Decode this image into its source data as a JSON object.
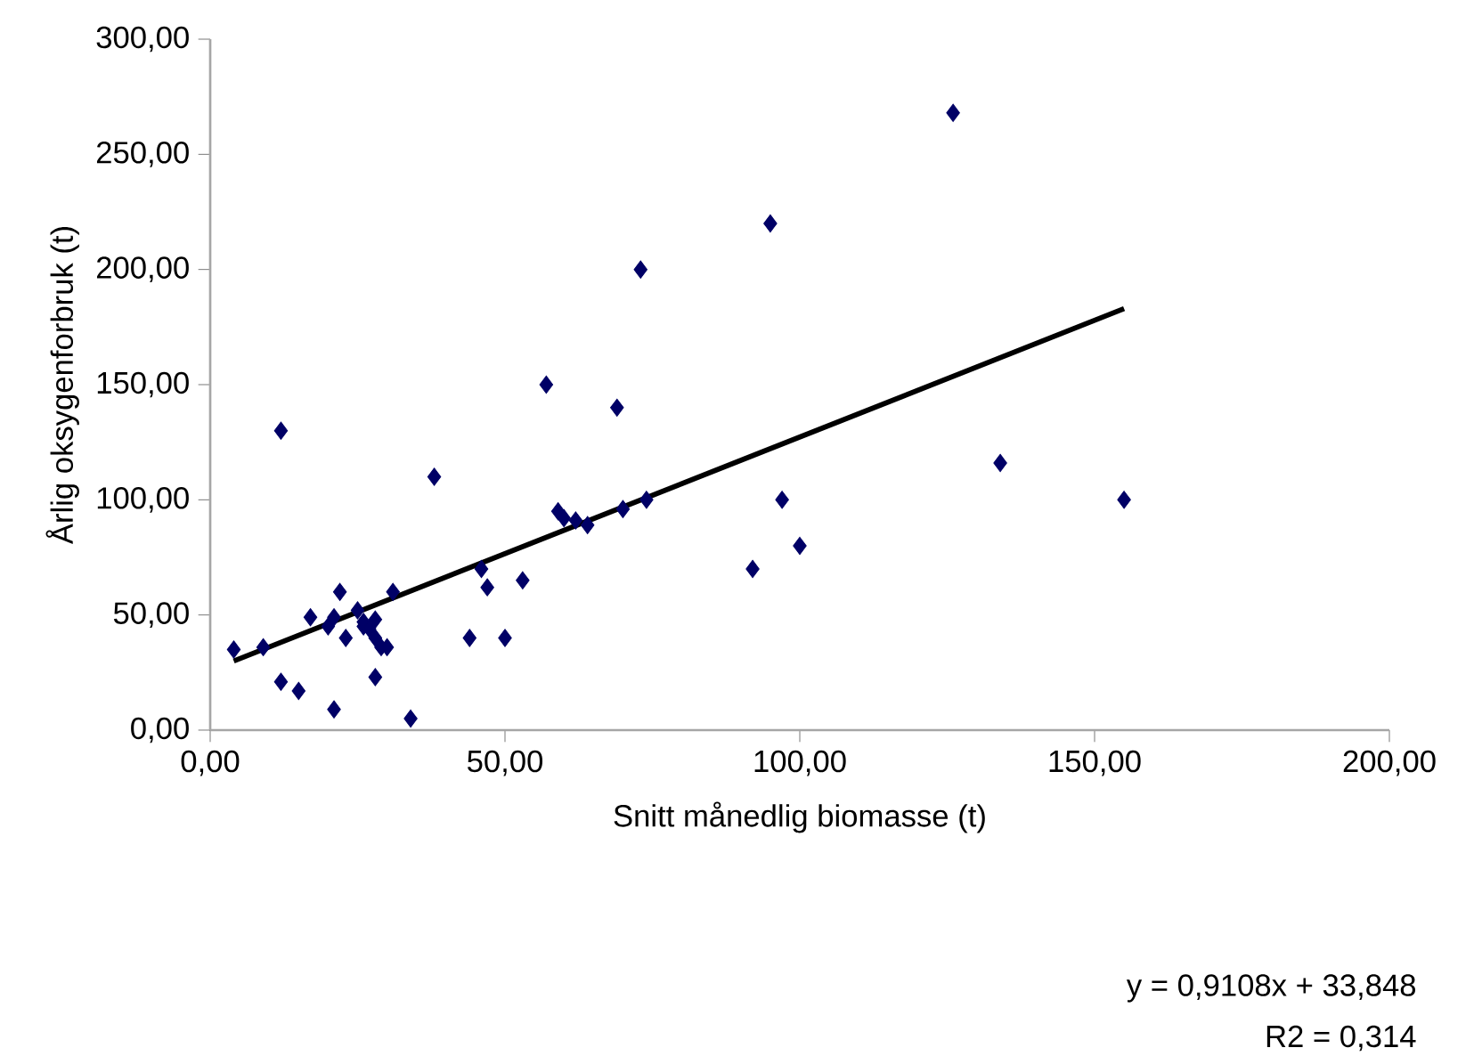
{
  "chart_data": {
    "type": "scatter",
    "xlabel": "Snitt månedlig biomasse (t)",
    "ylabel": "Årlig oksygenforbruk (t)",
    "xlim": [
      0,
      200
    ],
    "ylim": [
      0,
      300
    ],
    "xticks": [
      {
        "value": 0,
        "label": "0,00"
      },
      {
        "value": 50,
        "label": "50,00"
      },
      {
        "value": 100,
        "label": "100,00"
      },
      {
        "value": 150,
        "label": "150,00"
      },
      {
        "value": 200,
        "label": "200,00"
      }
    ],
    "yticks": [
      {
        "value": 0,
        "label": "0,00"
      },
      {
        "value": 50,
        "label": "50,00"
      },
      {
        "value": 100,
        "label": "100,00"
      },
      {
        "value": 150,
        "label": "150,00"
      },
      {
        "value": 200,
        "label": "200,00"
      },
      {
        "value": 250,
        "label": "250,00"
      },
      {
        "value": 300,
        "label": "300,00"
      }
    ],
    "marker": "diamond",
    "series": [
      {
        "color": "#000066",
        "x": [
          4,
          9,
          12,
          12,
          15,
          17,
          20,
          21,
          21,
          22,
          23,
          25,
          26,
          26,
          27,
          28,
          28,
          28,
          29,
          30,
          31,
          34,
          38,
          44,
          46,
          47,
          50,
          53,
          57,
          59,
          60,
          62,
          64,
          69,
          70,
          73,
          74,
          92,
          95,
          97,
          100,
          126,
          134,
          155
        ],
        "values": [
          35,
          36,
          130,
          21,
          17,
          49,
          45,
          49,
          9,
          60,
          40,
          52,
          45,
          47,
          44,
          48,
          40,
          23,
          36,
          36,
          60,
          5,
          110,
          40,
          70,
          62,
          40,
          65,
          150,
          95,
          92,
          91,
          89,
          140,
          96,
          200,
          100,
          70,
          220,
          100,
          80,
          268,
          116,
          100
        ]
      },
      {
        "type": "line",
        "color": "#000000",
        "marker": "none",
        "x": [
          4,
          155
        ],
        "values": [
          30,
          183
        ]
      }
    ],
    "annotations": [
      "y = 0,9108x + 33,848",
      "R2 = 0,314"
    ]
  }
}
